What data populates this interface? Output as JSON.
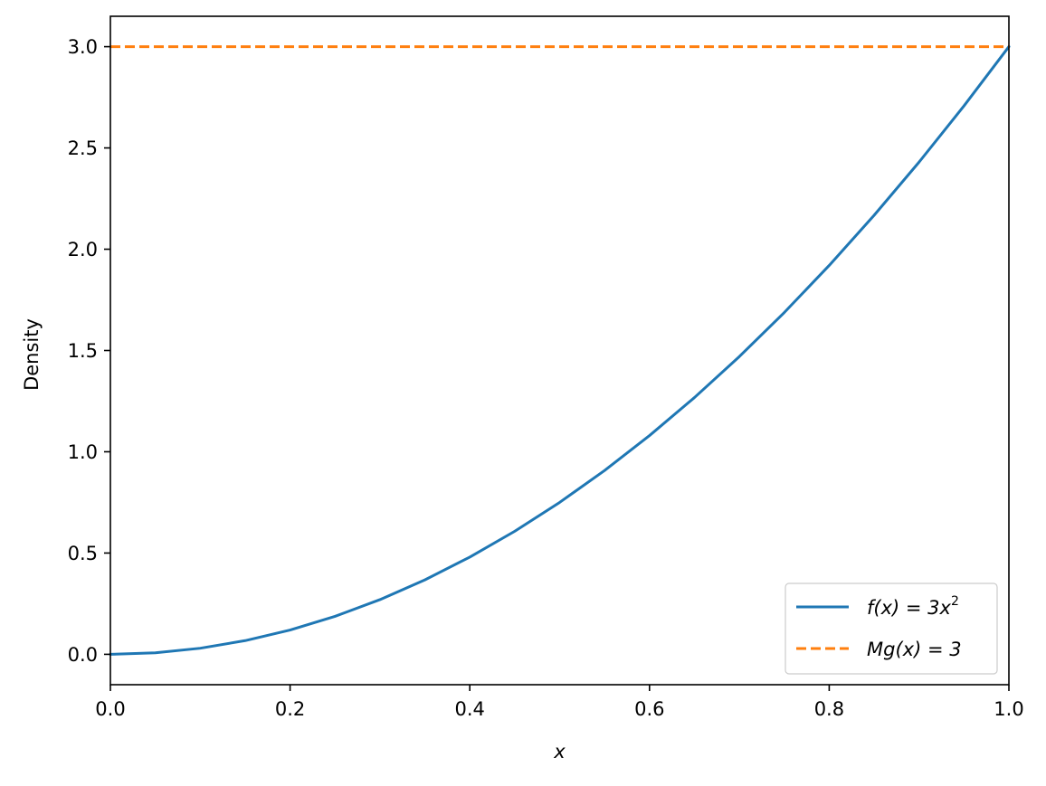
{
  "chart_data": {
    "type": "line",
    "title": "",
    "xlabel": "x",
    "ylabel": "Density",
    "xlim": [
      0.0,
      1.0
    ],
    "ylim": [
      -0.15,
      3.15
    ],
    "grid": false,
    "legend_position": "lower-right",
    "x_ticks": [
      0.0,
      0.2,
      0.4,
      0.6,
      0.8,
      1.0
    ],
    "x_tick_labels": [
      "0.0",
      "0.2",
      "0.4",
      "0.6",
      "0.8",
      "1.0"
    ],
    "y_ticks": [
      0.0,
      0.5,
      1.0,
      1.5,
      2.0,
      2.5,
      3.0
    ],
    "y_tick_labels": [
      "0.0",
      "0.5",
      "1.0",
      "1.5",
      "2.0",
      "2.5",
      "3.0"
    ],
    "series": [
      {
        "name": "f(x) = 3x²",
        "legend_main": "f(x) = 3x",
        "legend_sup": "2",
        "color": "#1f77b4",
        "style": "solid",
        "x": [
          0.0,
          0.05,
          0.1,
          0.15,
          0.2,
          0.25,
          0.3,
          0.35,
          0.4,
          0.45,
          0.5,
          0.55,
          0.6,
          0.65,
          0.7,
          0.75,
          0.8,
          0.85,
          0.9,
          0.95,
          1.0
        ],
        "y": [
          0.0,
          0.0075,
          0.03,
          0.0675,
          0.12,
          0.1875,
          0.27,
          0.3675,
          0.48,
          0.6075,
          0.75,
          0.9075,
          1.08,
          1.2675,
          1.47,
          1.6875,
          1.92,
          2.1675,
          2.43,
          2.7075,
          3.0
        ]
      },
      {
        "name": "Mg(x) = 3",
        "legend_main": "Mg(x) = 3",
        "legend_sup": "",
        "color": "#ff7f0e",
        "style": "dashed",
        "x": [
          0.0,
          1.0
        ],
        "y": [
          3.0,
          3.0
        ]
      }
    ]
  }
}
